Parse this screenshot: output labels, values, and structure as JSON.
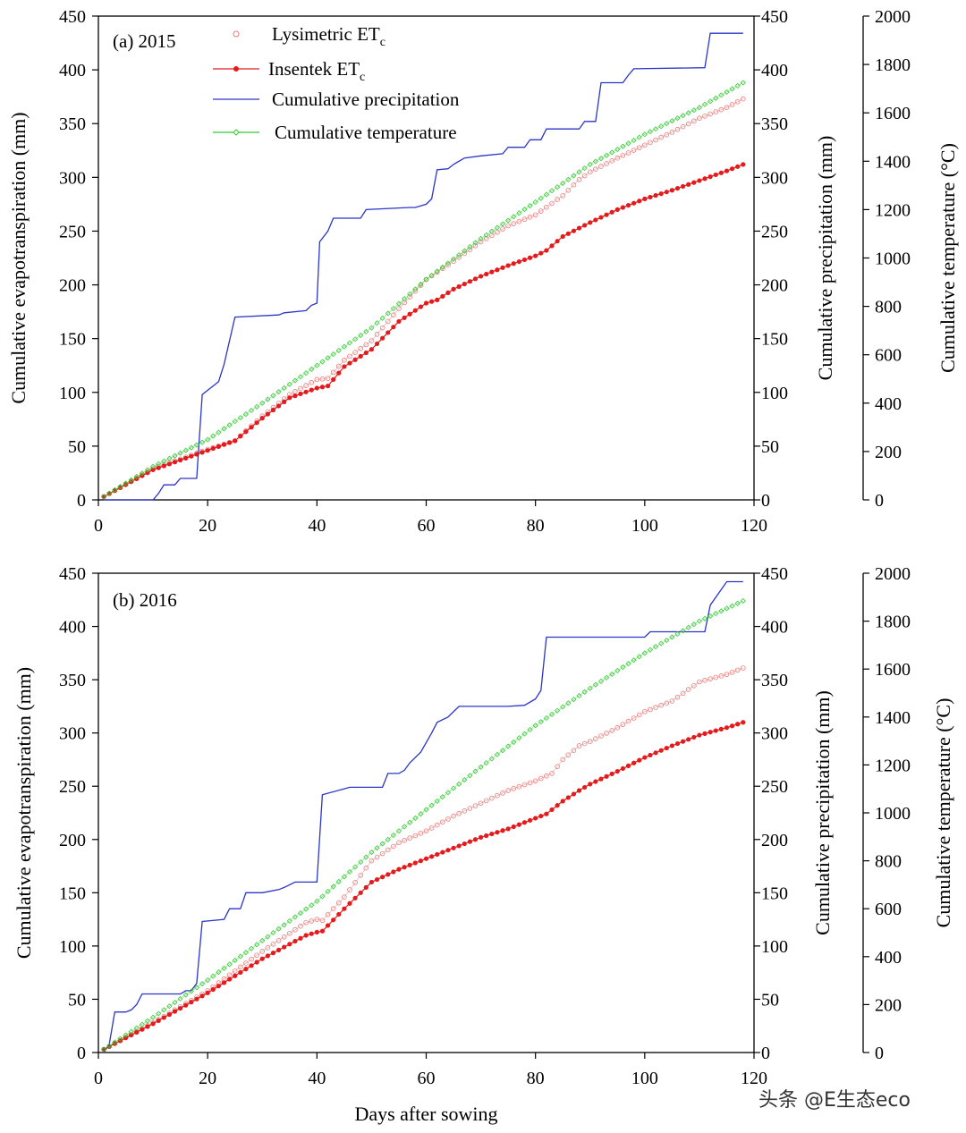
{
  "watermark": "头条 @E生态eco",
  "legend": [
    {
      "key": "lys",
      "label": "Lysimetric ET",
      "sub": "c",
      "color": "#e87a7a",
      "marker": "open-circle"
    },
    {
      "key": "ins",
      "label": "Insentek ET",
      "sub": "c",
      "color": "#e41a1c",
      "marker": "filled-circle"
    },
    {
      "key": "prec",
      "label": "Cumulative precipitation",
      "color": "#2b35c8",
      "marker": "line"
    },
    {
      "key": "temp",
      "label": "Cumulative temperature",
      "color": "#33cc33",
      "marker": "open-diamond"
    }
  ],
  "chart_data": [
    {
      "type": "line",
      "panel_label": "(a) 2015",
      "xlabel": "",
      "ylabel": "Cumulative evapotranspiration (mm)",
      "ylabel_right": "Cumulative precipitation (mm)",
      "ylabel_right2": "Cumulative temperature (°C)",
      "xlim": [
        0,
        120
      ],
      "ylim": [
        0,
        450
      ],
      "ylim_right2": [
        0,
        2000
      ],
      "xticks": [
        0,
        20,
        40,
        60,
        80,
        100,
        120
      ],
      "yticks": [
        0,
        50,
        100,
        150,
        200,
        250,
        300,
        350,
        400,
        450
      ],
      "yticks_right2": [
        0,
        200,
        400,
        600,
        800,
        1000,
        1200,
        1400,
        1600,
        1800,
        2000
      ],
      "series": [
        {
          "key": "lys",
          "name": "Lysimetric ETc",
          "x": [
            1,
            10,
            20,
            25,
            30,
            35,
            40,
            42,
            45,
            50,
            55,
            60,
            65,
            70,
            75,
            80,
            85,
            88,
            90,
            95,
            100,
            105,
            110,
            115,
            118
          ],
          "y": [
            3,
            29,
            47,
            55,
            78,
            98,
            112,
            113,
            130,
            148,
            178,
            205,
            222,
            240,
            255,
            265,
            283,
            298,
            305,
            318,
            330,
            342,
            355,
            365,
            373
          ]
        },
        {
          "key": "ins",
          "name": "Insentek ETc",
          "x": [
            1,
            10,
            20,
            25,
            30,
            35,
            40,
            42,
            45,
            50,
            55,
            60,
            62,
            65,
            70,
            75,
            80,
            82,
            85,
            90,
            95,
            98,
            100,
            105,
            110,
            115,
            118
          ],
          "y": [
            3,
            28,
            46,
            55,
            76,
            95,
            104,
            106,
            124,
            140,
            166,
            183,
            186,
            196,
            208,
            218,
            227,
            232,
            245,
            258,
            270,
            276,
            280,
            288,
            297,
            306,
            312
          ]
        },
        {
          "key": "prec",
          "name": "Cumulative precipitation",
          "x": [
            1,
            10,
            11,
            12,
            13,
            14,
            15,
            16,
            18,
            19,
            20,
            21,
            22,
            23,
            24,
            25,
            33,
            34,
            38,
            39,
            40,
            40.5,
            42,
            43,
            44,
            48,
            49,
            57,
            58,
            60,
            61,
            62,
            64,
            65,
            67,
            70,
            74,
            75,
            78,
            79,
            81,
            82,
            88,
            89,
            91,
            92,
            96,
            97,
            98,
            111,
            112,
            118
          ],
          "y": [
            0,
            0,
            6,
            14,
            14,
            14,
            20,
            20,
            20,
            98,
            102,
            106,
            110,
            126,
            148,
            170,
            172,
            174,
            176,
            181,
            183,
            240,
            250,
            262,
            262,
            262,
            270,
            272,
            272,
            275,
            280,
            307,
            308,
            312,
            318,
            320,
            322,
            328,
            328,
            335,
            335,
            345,
            345,
            352,
            352,
            388,
            388,
            395,
            401,
            402,
            434,
            434
          ]
        },
        {
          "key": "temp",
          "name": "Cumulative temperature",
          "x": [
            1,
            10,
            20,
            30,
            40,
            50,
            60,
            70,
            80,
            90,
            100,
            110,
            118
          ],
          "y": [
            3,
            31,
            56,
            90,
            125,
            160,
            205,
            243,
            277,
            312,
            340,
            365,
            388
          ]
        }
      ]
    },
    {
      "type": "line",
      "panel_label": "(b) 2016",
      "xlabel": "Days after sowing",
      "ylabel": "Cumulative evapotranspiration (mm)",
      "ylabel_right": "Cumulative precipitation (mm)",
      "ylabel_right2": "Cumulative temperature (°C)",
      "xlim": [
        0,
        120
      ],
      "ylim": [
        0,
        450
      ],
      "ylim_right2": [
        0,
        2000
      ],
      "xticks": [
        0,
        20,
        40,
        60,
        80,
        100,
        120
      ],
      "yticks": [
        0,
        50,
        100,
        150,
        200,
        250,
        300,
        350,
        400,
        450
      ],
      "yticks_right2": [
        0,
        200,
        400,
        600,
        800,
        1000,
        1200,
        1400,
        1600,
        1800,
        2000
      ],
      "series": [
        {
          "key": "lys",
          "name": "Lysimetric ETc",
          "x": [
            1,
            10,
            20,
            30,
            38,
            40,
            41,
            45,
            50,
            55,
            60,
            65,
            70,
            75,
            80,
            83,
            85,
            88,
            90,
            95,
            100,
            105,
            110,
            115,
            118
          ],
          "y": [
            3,
            28,
            58,
            95,
            122,
            125,
            124,
            146,
            180,
            197,
            208,
            222,
            234,
            246,
            255,
            262,
            275,
            288,
            292,
            305,
            320,
            330,
            348,
            355,
            361
          ]
        },
        {
          "key": "ins",
          "name": "Insentek ETc",
          "x": [
            1,
            10,
            20,
            30,
            38,
            40,
            41,
            45,
            50,
            55,
            60,
            65,
            70,
            75,
            80,
            82,
            85,
            88,
            90,
            95,
            100,
            105,
            110,
            115,
            118
          ],
          "y": [
            3,
            27,
            56,
            88,
            110,
            113,
            114,
            135,
            160,
            172,
            182,
            192,
            202,
            210,
            220,
            224,
            236,
            246,
            252,
            264,
            277,
            288,
            298,
            305,
            310
          ]
        },
        {
          "key": "prec",
          "name": "Cumulative precipitation",
          "x": [
            1,
            2,
            3,
            5,
            6,
            7,
            8,
            15,
            16,
            17,
            18,
            19,
            23,
            24,
            26,
            27,
            30,
            33,
            34,
            36,
            40,
            41,
            46,
            52,
            53,
            55,
            56,
            57,
            59,
            61,
            62,
            64,
            66,
            75,
            78,
            80,
            81,
            82,
            100,
            101,
            111,
            112,
            115,
            118
          ],
          "y": [
            0,
            8,
            38,
            38,
            40,
            45,
            55,
            55,
            58,
            58,
            65,
            123,
            125,
            135,
            135,
            150,
            150,
            153,
            155,
            160,
            160,
            242,
            249,
            249,
            262,
            262,
            265,
            272,
            282,
            300,
            310,
            315,
            325,
            325,
            326,
            332,
            340,
            390,
            390,
            395,
            395,
            420,
            442,
            442
          ]
        },
        {
          "key": "temp",
          "name": "Cumulative temperature",
          "x": [
            1,
            10,
            20,
            30,
            40,
            50,
            60,
            70,
            80,
            90,
            100,
            110,
            118
          ],
          "y": [
            3,
            33,
            68,
            105,
            142,
            188,
            228,
            268,
            307,
            342,
            375,
            405,
            424
          ]
        }
      ]
    }
  ]
}
